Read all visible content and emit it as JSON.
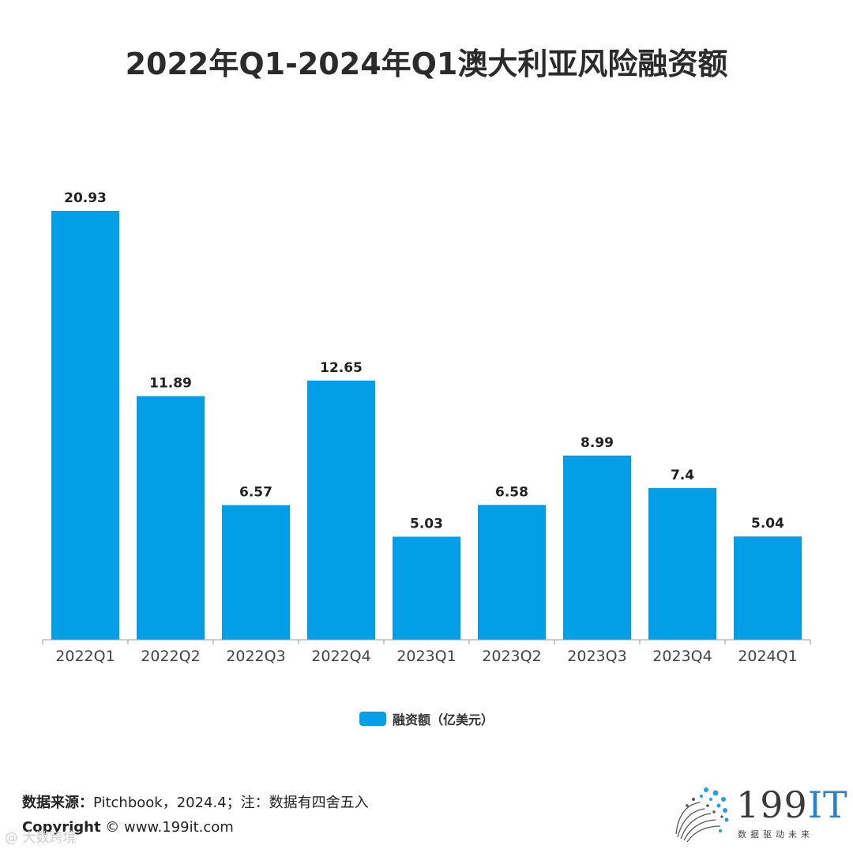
{
  "title": "2022年Q1-2024年Q1澳大利亚风险融资额",
  "chart_data": {
    "type": "bar",
    "categories": [
      "2022Q1",
      "2022Q2",
      "2022Q3",
      "2022Q4",
      "2023Q1",
      "2023Q2",
      "2023Q3",
      "2023Q4",
      "2024Q1"
    ],
    "values": [
      20.93,
      11.89,
      6.57,
      12.65,
      5.03,
      6.58,
      8.99,
      7.4,
      5.04
    ],
    "value_labels": [
      "20.93",
      "11.89",
      "6.57",
      "12.65",
      "5.03",
      "6.58",
      "8.99",
      "7.4",
      "5.04"
    ],
    "series_name": "融资额（亿美元）",
    "ylim": [
      0,
      21
    ],
    "color": "#039fe6",
    "title": "2022年Q1-2024年Q1澳大利亚风险融资额",
    "xlabel": "",
    "ylabel": "",
    "legend": "bottom-center"
  },
  "legend": {
    "label": "融资额（亿美元）"
  },
  "footer": {
    "source_key": "数据来源：",
    "source_value": "Pitchbook，2024.4；注：数据有四舍五入",
    "copyright_key": "Copyright",
    "copyright_value": " © www.199it.com"
  },
  "logo": {
    "text_num": "199",
    "text_it": "IT",
    "slogan": "数据驱动未来"
  },
  "watermark": "@ 大数跨境"
}
